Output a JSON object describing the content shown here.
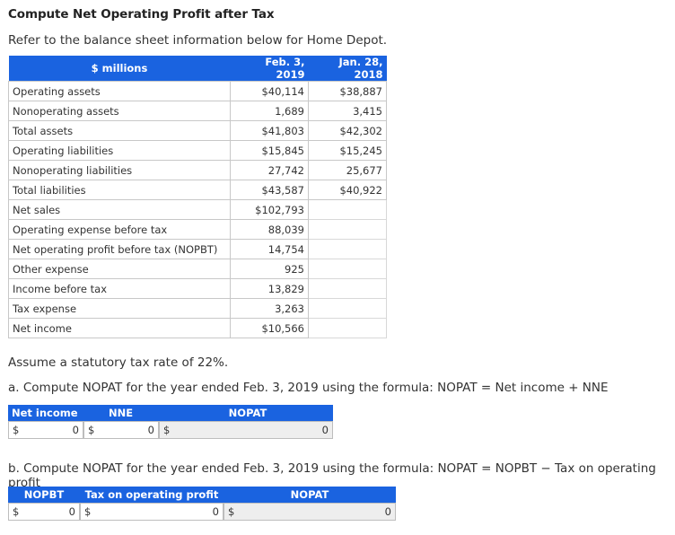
{
  "title": "Compute Net Operating Profit after Tax",
  "intro": "Refer to the balance sheet information below for Home Depot.",
  "table": {
    "headers": [
      "$ millions",
      "Feb. 3, 2019",
      "Jan. 28, 2018"
    ],
    "rows": [
      {
        "label": "Operating assets",
        "a": "$40,114",
        "b": "$38,887"
      },
      {
        "label": "Nonoperating assets",
        "a": "1,689",
        "b": "3,415"
      },
      {
        "label": "Total assets",
        "a": "$41,803",
        "b": "$42,302"
      },
      {
        "label": "Operating liabilities",
        "a": "$15,845",
        "b": "$15,245"
      },
      {
        "label": "Nonoperating liabilities",
        "a": "27,742",
        "b": "25,677"
      },
      {
        "label": "Total liabilities",
        "a": "$43,587",
        "b": "$40,922"
      },
      {
        "label": "Net sales",
        "a": "$102,793",
        "b": ""
      },
      {
        "label": "Operating expense before tax",
        "a": "88,039",
        "b": ""
      },
      {
        "label": "Net operating profit before tax (NOPBT)",
        "a": "14,754",
        "b": ""
      },
      {
        "label": "Other expense",
        "a": "925",
        "b": ""
      },
      {
        "label": "Income before tax",
        "a": "13,829",
        "b": ""
      },
      {
        "label": "Tax expense",
        "a": "3,263",
        "b": ""
      },
      {
        "label": "Net income",
        "a": "$10,566",
        "b": ""
      }
    ]
  },
  "assume": "Assume a statutory tax rate of 22%.",
  "part_a": {
    "question": "a. Compute NOPAT for the year ended Feb. 3, 2019 using the formula: NOPAT = Net income + NNE",
    "headers": [
      "Net income",
      "NNE",
      "NOPAT"
    ],
    "currency": "$",
    "inputs": [
      "0",
      "0"
    ],
    "result": "0"
  },
  "part_b": {
    "question": "b. Compute NOPAT for the year ended Feb. 3, 2019 using the formula: NOPAT = NOPBT − Tax on operating profit",
    "headers": [
      "NOPBT",
      "Tax on operating profit",
      "NOPAT"
    ],
    "currency": "$",
    "inputs": [
      "0",
      "0"
    ],
    "result": "0"
  }
}
